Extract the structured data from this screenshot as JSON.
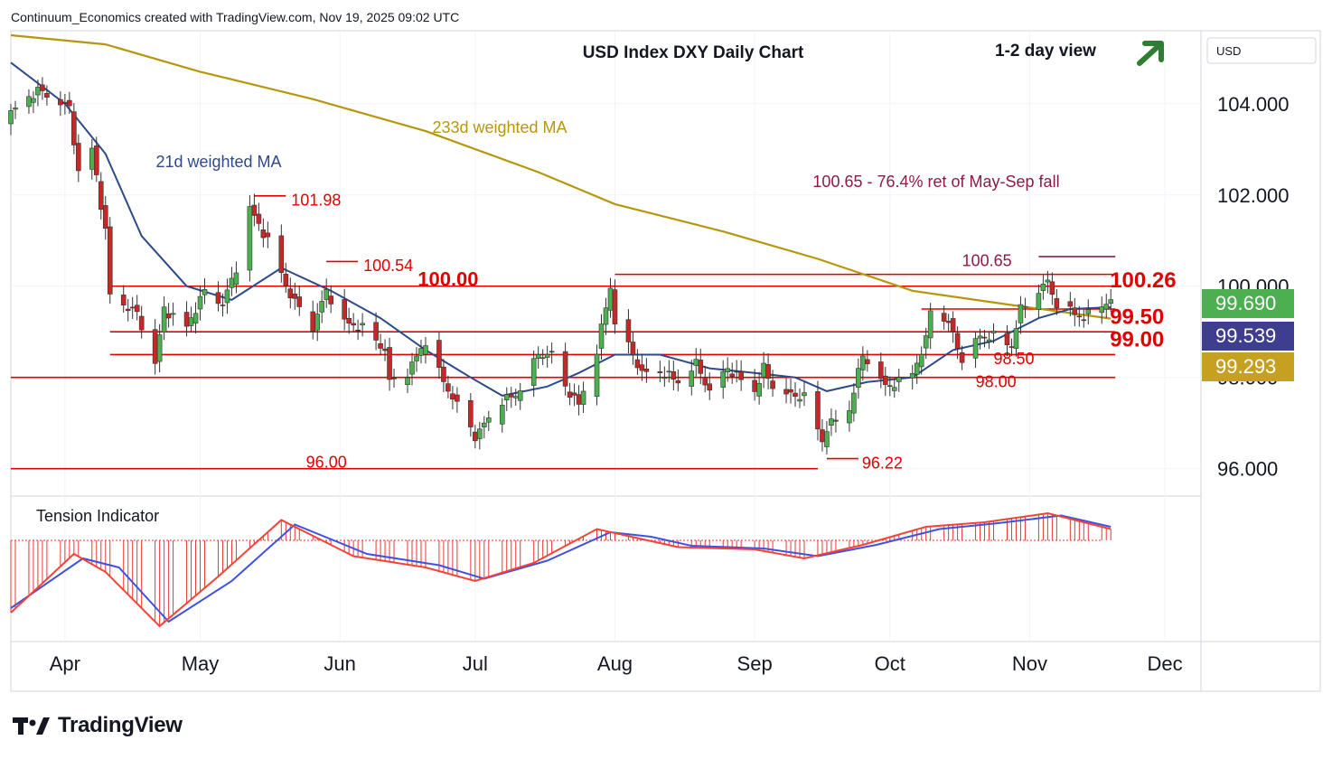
{
  "header": {
    "credit": "Continuum_Economics created with TradingView.com, Nov 19, 2025 09:02 UTC"
  },
  "brand": {
    "name": "TradingView"
  },
  "chart_data": {
    "type": "candlestick",
    "title": "USD Index DXY Daily Chart",
    "subtitle": "1-2 day view",
    "bias": "up",
    "currency": "USD",
    "y_ticks": [
      "104.000",
      "102.000",
      "100.000",
      "98.000",
      "96.000"
    ],
    "y_range": [
      95.4,
      105.6
    ],
    "x_ticks": [
      {
        "label": "Apr",
        "date": "2025-04-01"
      },
      {
        "label": "May",
        "date": "2025-05-01"
      },
      {
        "label": "Jun",
        "date": "2025-06-01"
      },
      {
        "label": "Jul",
        "date": "2025-07-01"
      },
      {
        "label": "Aug",
        "date": "2025-08-01"
      },
      {
        "label": "Sep",
        "date": "2025-09-01"
      },
      {
        "label": "Oct",
        "date": "2025-10-01"
      },
      {
        "label": "Nov",
        "date": "2025-11-01"
      },
      {
        "label": "Dec",
        "date": "2025-12-01"
      }
    ],
    "price_badges": [
      {
        "value": "99.690",
        "color": "#4caf50"
      },
      {
        "value": "99.539",
        "color": "#3f3d8f"
      },
      {
        "value": "99.293",
        "color": "#c5a021"
      }
    ],
    "ma_labels": {
      "ma21": "21d weighted MA",
      "ma233": "233d weighted MA"
    },
    "fib_note": "100.65 - 76.4% ret of May-Sep fall",
    "levels": [
      {
        "label": "101.98",
        "value": 101.98,
        "from": "2025-05-13",
        "to": "2025-05-20"
      },
      {
        "label": "100.54",
        "value": 100.54,
        "from": "2025-05-29",
        "to": "2025-06-05"
      },
      {
        "label": "100.00",
        "value": 100.0,
        "from": "2025-04-11",
        "to": "2025-11-20"
      },
      {
        "label": "100.26",
        "value": 100.26,
        "from": "2025-08-01",
        "to": "2025-11-20"
      },
      {
        "label": "100.65",
        "value": 100.65,
        "from": "2025-11-03",
        "to": "2025-11-20"
      },
      {
        "label": "99.50",
        "value": 99.5,
        "from": "2025-10-08",
        "to": "2025-11-20"
      },
      {
        "label": "99.00",
        "value": 99.0,
        "from": "2025-04-11",
        "to": "2025-11-20"
      },
      {
        "label": "98.50",
        "value": 98.5,
        "from": "2025-04-11",
        "to": "2025-11-20"
      },
      {
        "label": "98.00",
        "value": 98.0,
        "from": "2025-03-20",
        "to": "2025-11-20"
      },
      {
        "label": "96.00",
        "value": 96.0,
        "from": "2025-03-20",
        "to": "2025-09-15"
      },
      {
        "label": "96.22",
        "value": 96.22,
        "from": "2025-09-17",
        "to": "2025-09-24"
      }
    ],
    "price_path": [
      [
        "2025-03-20",
        103.8
      ],
      [
        "2025-03-26",
        104.3
      ],
      [
        "2025-04-02",
        103.9
      ],
      [
        "2025-04-04",
        102.5
      ],
      [
        "2025-04-07",
        103.0
      ],
      [
        "2025-04-10",
        101.2
      ],
      [
        "2025-04-11",
        99.8
      ],
      [
        "2025-04-14",
        99.6
      ],
      [
        "2025-04-17",
        99.4
      ],
      [
        "2025-04-21",
        98.3
      ],
      [
        "2025-04-23",
        99.5
      ],
      [
        "2025-04-28",
        99.1
      ],
      [
        "2025-05-02",
        99.9
      ],
      [
        "2025-05-06",
        99.6
      ],
      [
        "2025-05-09",
        100.4
      ],
      [
        "2025-05-12",
        101.7
      ],
      [
        "2025-05-16",
        101.0
      ],
      [
        "2025-05-21",
        99.8
      ],
      [
        "2025-05-26",
        99.1
      ],
      [
        "2025-05-29",
        99.9
      ],
      [
        "2025-06-02",
        99.2
      ],
      [
        "2025-06-06",
        99.1
      ],
      [
        "2025-06-11",
        98.6
      ],
      [
        "2025-06-12",
        97.9
      ],
      [
        "2025-06-16",
        98.1
      ],
      [
        "2025-06-20",
        98.8
      ],
      [
        "2025-06-24",
        97.9
      ],
      [
        "2025-06-30",
        96.9
      ],
      [
        "2025-07-01",
        96.7
      ],
      [
        "2025-07-07",
        97.5
      ],
      [
        "2025-07-10",
        97.6
      ],
      [
        "2025-07-15",
        98.5
      ],
      [
        "2025-07-18",
        98.5
      ],
      [
        "2025-07-21",
        97.8
      ],
      [
        "2025-07-24",
        97.4
      ],
      [
        "2025-07-28",
        98.6
      ],
      [
        "2025-07-31",
        100.0
      ],
      [
        "2025-08-01",
        99.2
      ],
      [
        "2025-08-04",
        98.7
      ],
      [
        "2025-08-07",
        98.1
      ],
      [
        "2025-08-12",
        98.1
      ],
      [
        "2025-08-15",
        97.9
      ],
      [
        "2025-08-19",
        98.3
      ],
      [
        "2025-08-22",
        97.7
      ],
      [
        "2025-08-26",
        98.2
      ],
      [
        "2025-09-01",
        97.7
      ],
      [
        "2025-09-03",
        98.2
      ],
      [
        "2025-09-05",
        97.8
      ],
      [
        "2025-09-09",
        97.6
      ],
      [
        "2025-09-12",
        97.6
      ],
      [
        "2025-09-16",
        96.6
      ],
      [
        "2025-09-17",
        96.9
      ],
      [
        "2025-09-22",
        97.3
      ],
      [
        "2025-09-25",
        98.5
      ],
      [
        "2025-09-30",
        97.8
      ],
      [
        "2025-10-03",
        97.9
      ],
      [
        "2025-10-06",
        98.1
      ],
      [
        "2025-10-09",
        98.8
      ],
      [
        "2025-10-10",
        99.5
      ],
      [
        "2025-10-14",
        99.2
      ],
      [
        "2025-10-17",
        98.4
      ],
      [
        "2025-10-21",
        98.9
      ],
      [
        "2025-10-24",
        98.9
      ],
      [
        "2025-10-28",
        98.7
      ],
      [
        "2025-10-30",
        99.5
      ],
      [
        "2025-11-03",
        99.9
      ],
      [
        "2025-11-05",
        100.1
      ],
      [
        "2025-11-07",
        99.6
      ],
      [
        "2025-11-11",
        99.4
      ],
      [
        "2025-11-13",
        99.3
      ],
      [
        "2025-11-17",
        99.6
      ],
      [
        "2025-11-19",
        99.69
      ]
    ],
    "ma21_path": [
      [
        "2025-03-20",
        104.9
      ],
      [
        "2025-04-01",
        104.0
      ],
      [
        "2025-04-10",
        102.9
      ],
      [
        "2025-04-18",
        101.1
      ],
      [
        "2025-04-28",
        100.0
      ],
      [
        "2025-05-08",
        99.7
      ],
      [
        "2025-05-19",
        100.4
      ],
      [
        "2025-05-30",
        99.9
      ],
      [
        "2025-06-10",
        99.3
      ],
      [
        "2025-06-20",
        98.6
      ],
      [
        "2025-06-30",
        98.0
      ],
      [
        "2025-07-07",
        97.6
      ],
      [
        "2025-07-17",
        97.8
      ],
      [
        "2025-07-24",
        98.1
      ],
      [
        "2025-08-01",
        98.5
      ],
      [
        "2025-08-11",
        98.5
      ],
      [
        "2025-08-22",
        98.2
      ],
      [
        "2025-09-01",
        98.1
      ],
      [
        "2025-09-10",
        98.0
      ],
      [
        "2025-09-17",
        97.7
      ],
      [
        "2025-09-26",
        97.9
      ],
      [
        "2025-10-06",
        98.0
      ],
      [
        "2025-10-15",
        98.6
      ],
      [
        "2025-10-24",
        98.8
      ],
      [
        "2025-11-03",
        99.3
      ],
      [
        "2025-11-10",
        99.5
      ],
      [
        "2025-11-19",
        99.54
      ]
    ],
    "ma233_path": [
      [
        "2025-03-20",
        105.5
      ],
      [
        "2025-04-10",
        105.3
      ],
      [
        "2025-05-01",
        104.7
      ],
      [
        "2025-05-26",
        104.1
      ],
      [
        "2025-06-20",
        103.4
      ],
      [
        "2025-07-15",
        102.5
      ],
      [
        "2025-08-01",
        101.8
      ],
      [
        "2025-08-25",
        101.2
      ],
      [
        "2025-09-15",
        100.6
      ],
      [
        "2025-10-06",
        99.9
      ],
      [
        "2025-10-27",
        99.6
      ],
      [
        "2025-11-19",
        99.29
      ]
    ],
    "tension": {
      "title": "Tension Indicator",
      "main": [
        [
          "2025-03-20",
          -1.6
        ],
        [
          "2025-04-03",
          -0.3
        ],
        [
          "2025-04-10",
          -0.7
        ],
        [
          "2025-04-22",
          -1.9
        ],
        [
          "2025-05-05",
          -0.8
        ],
        [
          "2025-05-19",
          0.45
        ],
        [
          "2025-06-04",
          -0.35
        ],
        [
          "2025-06-20",
          -0.6
        ],
        [
          "2025-07-01",
          -0.9
        ],
        [
          "2025-07-14",
          -0.5
        ],
        [
          "2025-07-28",
          0.25
        ],
        [
          "2025-08-06",
          0.05
        ],
        [
          "2025-08-15",
          -0.15
        ],
        [
          "2025-09-01",
          -0.2
        ],
        [
          "2025-09-12",
          -0.4
        ],
        [
          "2025-09-25",
          -0.1
        ],
        [
          "2025-10-09",
          0.3
        ],
        [
          "2025-10-22",
          0.4
        ],
        [
          "2025-11-05",
          0.6
        ],
        [
          "2025-11-19",
          0.25
        ]
      ],
      "signal": [
        [
          "2025-03-20",
          -1.5
        ],
        [
          "2025-04-05",
          -0.4
        ],
        [
          "2025-04-13",
          -0.6
        ],
        [
          "2025-04-24",
          -1.8
        ],
        [
          "2025-05-08",
          -0.9
        ],
        [
          "2025-05-22",
          0.35
        ],
        [
          "2025-06-07",
          -0.3
        ],
        [
          "2025-06-23",
          -0.55
        ],
        [
          "2025-07-03",
          -0.85
        ],
        [
          "2025-07-17",
          -0.45
        ],
        [
          "2025-07-31",
          0.18
        ],
        [
          "2025-08-09",
          0.08
        ],
        [
          "2025-08-18",
          -0.12
        ],
        [
          "2025-09-03",
          -0.18
        ],
        [
          "2025-09-15",
          -0.35
        ],
        [
          "2025-09-28",
          -0.1
        ],
        [
          "2025-10-12",
          0.25
        ],
        [
          "2025-10-25",
          0.38
        ],
        [
          "2025-11-08",
          0.55
        ],
        [
          "2025-11-19",
          0.3
        ]
      ]
    }
  }
}
